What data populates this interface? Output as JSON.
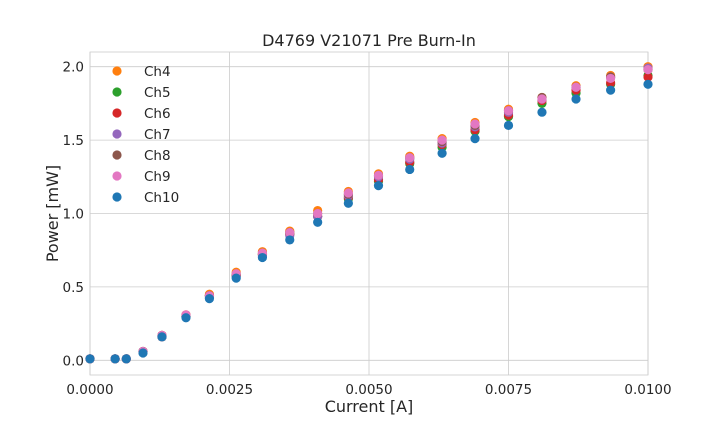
{
  "chart_data": {
    "type": "scatter",
    "title": "D4769 V21071 Pre Burn-In",
    "xlabel": "Current [A]",
    "ylabel": "Power [mW]",
    "xlim": [
      0,
      0.01
    ],
    "ylim": [
      -0.1,
      2.1
    ],
    "xticks": [
      0,
      0.0025,
      0.005,
      0.0075,
      0.01
    ],
    "xtick_labels": [
      "0.0000",
      "0.0025",
      "0.0050",
      "0.0075",
      "0.0100"
    ],
    "yticks": [
      0,
      0.5,
      1.0,
      1.5,
      2.0
    ],
    "ytick_labels": [
      "0.0",
      "0.5",
      "1.0",
      "1.5",
      "2.0"
    ],
    "grid": true,
    "legend_position": "top-left",
    "x": [
      0,
      0.00045,
      0.00065,
      0.00095,
      0.00129,
      0.00172,
      0.00214,
      0.00262,
      0.00309,
      0.00358,
      0.00408,
      0.00463,
      0.00517,
      0.00573,
      0.00631,
      0.0069,
      0.0075,
      0.0081,
      0.00871,
      0.00933,
      0.01
    ],
    "series": [
      {
        "name": "Ch4",
        "color": "#ff7f0e",
        "values": [
          0.01,
          0.01,
          0.01,
          0.06,
          0.17,
          0.31,
          0.45,
          0.6,
          0.74,
          0.88,
          1.02,
          1.15,
          1.27,
          1.39,
          1.51,
          1.62,
          1.71,
          1.79,
          1.87,
          1.94,
          2.0
        ]
      },
      {
        "name": "Ch5",
        "color": "#2ca02c",
        "values": [
          0.01,
          0.01,
          0.01,
          0.06,
          0.16,
          0.3,
          0.44,
          0.58,
          0.72,
          0.86,
          0.98,
          1.1,
          1.22,
          1.34,
          1.45,
          1.56,
          1.66,
          1.75,
          1.82,
          1.88,
          1.94
        ]
      },
      {
        "name": "Ch6",
        "color": "#d62728",
        "values": [
          0.01,
          0.01,
          0.01,
          0.06,
          0.16,
          0.3,
          0.44,
          0.58,
          0.72,
          0.86,
          0.98,
          1.11,
          1.23,
          1.35,
          1.47,
          1.57,
          1.67,
          1.77,
          1.84,
          1.89,
          1.93
        ]
      },
      {
        "name": "Ch7",
        "color": "#9467bd",
        "values": [
          0.01,
          0.01,
          0.01,
          0.06,
          0.16,
          0.3,
          0.43,
          0.57,
          0.71,
          0.85,
          0.98,
          1.12,
          1.25,
          1.37,
          1.48,
          1.59,
          1.69,
          1.78,
          1.86,
          1.93,
          1.99
        ]
      },
      {
        "name": "Ch8",
        "color": "#8c564b",
        "values": [
          0.01,
          0.01,
          0.01,
          0.06,
          0.17,
          0.3,
          0.44,
          0.58,
          0.73,
          0.87,
          1.0,
          1.13,
          1.26,
          1.38,
          1.49,
          1.6,
          1.7,
          1.79,
          1.86,
          1.93,
          1.98
        ]
      },
      {
        "name": "Ch9",
        "color": "#e377c2",
        "values": [
          0.01,
          0.01,
          0.01,
          0.06,
          0.17,
          0.31,
          0.44,
          0.59,
          0.73,
          0.87,
          1.0,
          1.14,
          1.26,
          1.38,
          1.5,
          1.61,
          1.7,
          1.78,
          1.86,
          1.92,
          1.98
        ]
      },
      {
        "name": "Ch10",
        "color": "#1f77b4",
        "values": [
          0.01,
          0.01,
          0.01,
          0.05,
          0.16,
          0.29,
          0.42,
          0.56,
          0.7,
          0.82,
          0.94,
          1.07,
          1.19,
          1.3,
          1.41,
          1.51,
          1.6,
          1.69,
          1.78,
          1.84,
          1.88
        ]
      }
    ]
  }
}
